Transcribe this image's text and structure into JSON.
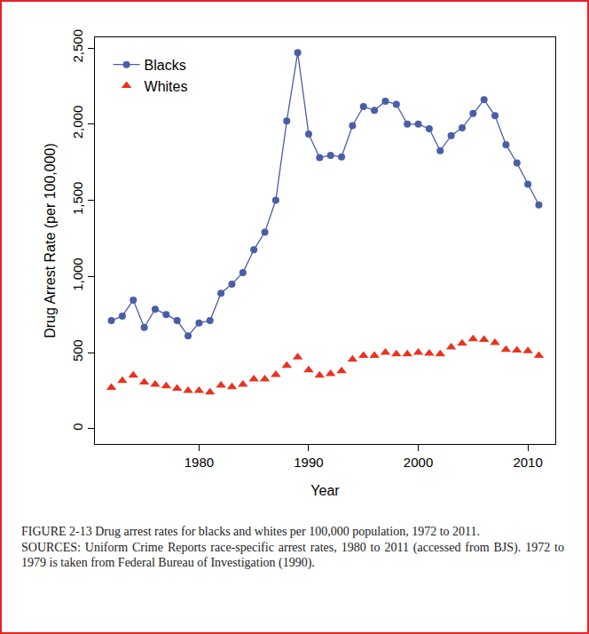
{
  "chart_data": {
    "type": "scatter",
    "x_label": "Year",
    "y_label": "Drug Arrest Rate (per 100,000)",
    "x": [
      1972,
      1973,
      1974,
      1975,
      1976,
      1977,
      1978,
      1979,
      1980,
      1981,
      1982,
      1983,
      1984,
      1985,
      1986,
      1987,
      1988,
      1989,
      1990,
      1991,
      1992,
      1993,
      1994,
      1995,
      1996,
      1997,
      1998,
      1999,
      2000,
      2001,
      2002,
      2003,
      2004,
      2005,
      2006,
      2007,
      2008,
      2009,
      2010,
      2011
    ],
    "series": [
      {
        "name": "Blacks",
        "color": "#4a5ea8",
        "marker": "circle",
        "line_style": "solid",
        "values": [
          710,
          740,
          845,
          665,
          785,
          750,
          710,
          610,
          695,
          710,
          890,
          950,
          1025,
          1175,
          1290,
          1500,
          2020,
          2470,
          1935,
          1780,
          1795,
          1785,
          1990,
          2115,
          2090,
          2150,
          2130,
          2000,
          2000,
          1970,
          1825,
          1925,
          1975,
          2070,
          2160,
          2055,
          1865,
          1745,
          1605,
          1470
        ]
      },
      {
        "name": "Whites",
        "color": "#e8321e",
        "marker": "triangle",
        "line_style": "none",
        "values": [
          270,
          315,
          350,
          305,
          290,
          280,
          265,
          250,
          250,
          240,
          285,
          275,
          290,
          325,
          325,
          355,
          415,
          470,
          385,
          350,
          360,
          380,
          455,
          480,
          480,
          500,
          490,
          490,
          500,
          495,
          490,
          535,
          560,
          590,
          585,
          565,
          520,
          515,
          510,
          480
        ]
      }
    ],
    "xlim": [
      1970.5,
      2012.5
    ],
    "xticks": [
      1980,
      1990,
      2000,
      2010
    ],
    "ylim": [
      -100,
      2570
    ],
    "yticks": [
      0,
      500,
      {
        "value": 1000,
        "label": "1,000"
      },
      {
        "value": 1500,
        "label": "1,500"
      },
      {
        "value": 2000,
        "label": "2,000"
      },
      {
        "value": 2500,
        "label": "2,500"
      }
    ],
    "grid": false,
    "legend": "top-left"
  },
  "caption": {
    "title": "FIGURE 2-13 Drug arrest rates for blacks and whites per 100,000 population, 1972 to 2011.",
    "sources": "SOURCES: Uniform Crime Reports race-specific arrest rates, 1980 to 2011 (accessed from BJS). 1972 to 1979 is taken from Federal Bureau of Investigation (1990)."
  }
}
